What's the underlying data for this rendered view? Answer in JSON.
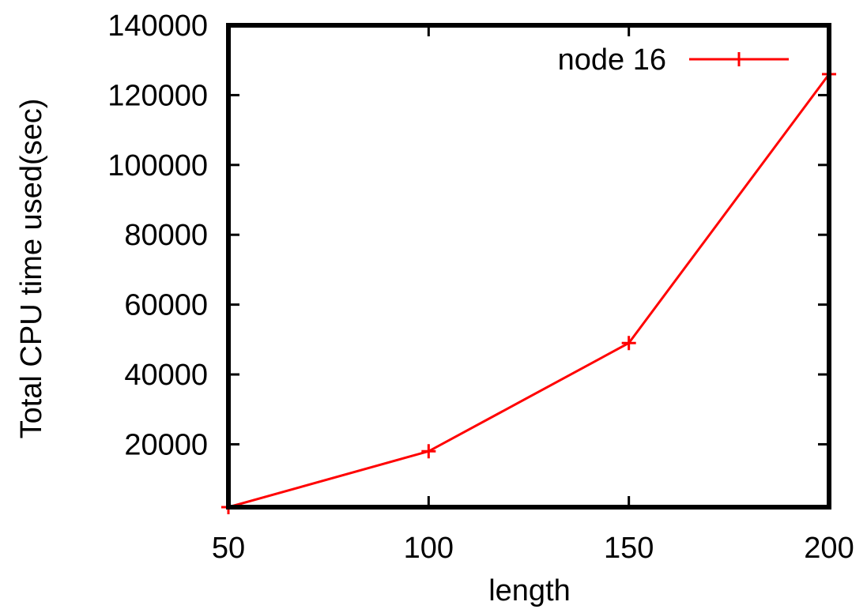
{
  "chart_data": {
    "type": "line",
    "title": "",
    "xlabel": "length",
    "ylabel": "Total CPU time used(sec)",
    "x": [
      50,
      100,
      150,
      200
    ],
    "xticks": [
      "50",
      "100",
      "150",
      "200"
    ],
    "yticks": [
      "20000",
      "40000",
      "60000",
      "80000",
      "100000",
      "120000",
      "140000"
    ],
    "xlim": [
      50,
      200
    ],
    "ylim": [
      2000,
      140000
    ],
    "grid": false,
    "legend_position": "top-right",
    "series": [
      {
        "name": "node 16",
        "color": "#ff0000",
        "marker": "plus",
        "values": [
          2000,
          18000,
          49000,
          126000
        ]
      }
    ]
  }
}
